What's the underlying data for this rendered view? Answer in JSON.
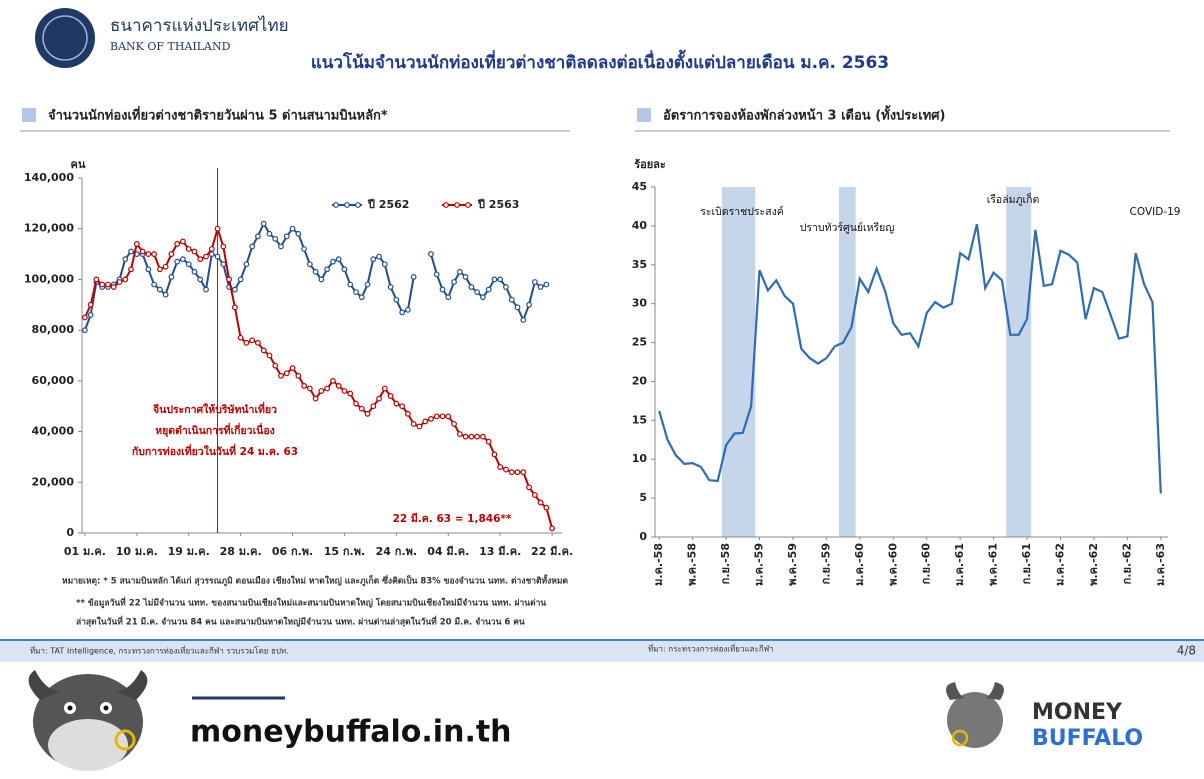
{
  "header": {
    "org_thai": "ธนาคารแห่งประเทศไทย",
    "org_english": "BANK OF THAILAND",
    "title": "แนวโน้มจำนวนนักท่องเที่ยวต่างชาติลดลงต่อเนื่องตั้งแต่ปลายเดือน ม.ค. 2563"
  },
  "chart_data": [
    {
      "type": "line",
      "title": "จำนวนนักท่องเที่ยวต่างชาติรายวันผ่าน 5 ด่านสนามบินหลัก*",
      "ylabel": "คน",
      "categories": [
        "01 ม.ค.",
        null,
        null,
        null,
        null,
        null,
        null,
        null,
        null,
        "10 ม.ค.",
        null,
        null,
        null,
        null,
        null,
        null,
        null,
        null,
        "19 ม.ค.",
        null,
        null,
        null,
        null,
        null,
        null,
        null,
        null,
        "28 ม.ค.",
        null,
        null,
        null,
        null,
        null,
        null,
        null,
        null,
        "06 ก.พ.",
        null,
        null,
        null,
        null,
        null,
        null,
        null,
        null,
        "15 ก.พ.",
        null,
        null,
        null,
        null,
        null,
        null,
        null,
        null,
        "24 ก.พ.",
        null,
        null,
        null,
        null,
        null,
        null,
        null,
        null,
        "04 มี.ค.",
        null,
        null,
        null,
        null,
        null,
        null,
        null,
        null,
        "13 มี.ค.",
        null,
        null,
        null,
        null,
        null,
        null,
        null,
        null,
        "22 มี.ค."
      ],
      "series": [
        {
          "name": "ปี 2562",
          "color": "#1f4e8c",
          "values": [
            80000,
            86000,
            99000,
            97000,
            97000,
            98000,
            100000,
            108000,
            111000,
            110000,
            110000,
            104000,
            98000,
            96000,
            94000,
            101000,
            107000,
            108000,
            106000,
            103000,
            100000,
            96000,
            110000,
            109000,
            106000,
            97000,
            96000,
            100000,
            106000,
            113000,
            117000,
            122000,
            118000,
            116000,
            113000,
            117000,
            120000,
            118000,
            112000,
            106000,
            103000,
            100000,
            104000,
            107000,
            108000,
            104000,
            98000,
            95000,
            93000,
            98000,
            108000,
            109000,
            106000,
            97000,
            92000,
            87000,
            88000,
            101000,
            null,
            null,
            110000,
            102000,
            96000,
            93000,
            99000,
            103000,
            101000,
            97000,
            95000,
            93000,
            96000,
            100000,
            100000,
            97000,
            92000,
            89000,
            84000,
            90000,
            99000,
            97000,
            98000,
            null
          ]
        },
        {
          "name": "ปี 2563",
          "color": "#c00000",
          "values": [
            85000,
            90000,
            100000,
            98000,
            98000,
            97000,
            99000,
            100000,
            104000,
            114000,
            111000,
            110000,
            110000,
            104000,
            105000,
            110000,
            114000,
            115000,
            112000,
            111000,
            108000,
            109000,
            112000,
            120000,
            113000,
            100000,
            89000,
            77000,
            75000,
            76000,
            75000,
            72000,
            70000,
            66000,
            62000,
            63000,
            65000,
            62000,
            58000,
            57000,
            53000,
            56000,
            57000,
            60000,
            58000,
            56000,
            55000,
            51000,
            49000,
            47000,
            50000,
            53000,
            57000,
            54000,
            51000,
            50000,
            47000,
            43000,
            42000,
            44000,
            45000,
            46000,
            46000,
            46000,
            43000,
            39000,
            38000,
            38000,
            38000,
            38000,
            36000,
            31000,
            26000,
            25000,
            24000,
            24000,
            24000,
            18000,
            15000,
            12000,
            10000,
            1846
          ]
        }
      ],
      "ylim": [
        0,
        140000
      ],
      "yticks": [
        0,
        {
          "value": 20000,
          "label": "20,000"
        },
        {
          "value": 40000,
          "label": "40,000"
        },
        {
          "value": 60000,
          "label": "60,000"
        },
        {
          "value": 80000,
          "label": "80,000"
        },
        {
          "value": 100000,
          "label": "100,000"
        },
        {
          "value": 120000,
          "label": "120,000"
        },
        {
          "value": 140000,
          "label": "140,000"
        }
      ],
      "markers": true,
      "legend": "top-right",
      "event_category": 23,
      "annotations": [
        "จีนประกาศให้บริษัทนำเที่ยว",
        "หยุดดำเนินการที่เกี่ยวเนื่อง",
        "กับการท่องเที่ยวในวันที่ 24 ม.ค. 63",
        "22 มี.ค. 63 = 1,846**"
      ],
      "notes": [
        "หมายเหตุ: * 5 สนามบินหลัก ได้แก่ สุวรรณภูมิ ดอนเมือง เชียงใหม่ หาดใหญ่ และภูเก็ต ซึ่งคิดเป็น 83% ของจำนวน นทท. ต่างชาติทั้งหมด",
        "** ข้อมูลวันที่ 22 ไม่มีจำนวน นทท. ของสนามบินเชียงใหม่และสนามบินหาดใหญ่ โดยสนามบินเชียงใหม่มีจำนวน นทท. ผ่านด่าน",
        "ล่าสุดในวันที่ 21 มี.ค. จำนวน 84 คน และสนามบินหาดใหญ่มีจำนวน นทท. ผ่านด่านล่าสุดในวันที่ 20 มี.ค. จำนวน 6 คน"
      ],
      "source": "ที่มา: TAT Intelligence, กระทรวงการท่องเที่ยวและกีฬา รวบรวมโดย ธปท."
    },
    {
      "type": "line",
      "title": "อัตราการจองห้องพักล่วงหน้า 3 เดือน (ทั้งประเทศ)",
      "ylabel": "ร้อยละ",
      "categories": [
        "ม.ค.-58",
        null,
        null,
        null,
        "พ.ค.-58",
        null,
        null,
        null,
        "ก.ย.-58",
        null,
        null,
        null,
        "ม.ค.-59",
        null,
        null,
        null,
        "พ.ค.-59",
        null,
        null,
        null,
        "ก.ย.-59",
        null,
        null,
        null,
        "ม.ค.-60",
        null,
        null,
        null,
        "พ.ค.-60",
        null,
        null,
        null,
        "ก.ย.-60",
        null,
        null,
        null,
        "ม.ค.-61",
        null,
        null,
        null,
        "พ.ค.-61",
        null,
        null,
        null,
        "ก.ย.-61",
        null,
        null,
        null,
        "ม.ค.-62",
        null,
        null,
        null,
        "พ.ค.-62",
        null,
        null,
        null,
        "ก.ย.-62",
        null,
        null,
        null,
        "ม.ค.-63"
      ],
      "series": [
        {
          "color": "#2e6db4",
          "values": [
            16.2,
            12.5,
            10.5,
            9.4,
            9.5,
            9.0,
            7.3,
            7.2,
            11.8,
            13.3,
            13.4,
            16.8,
            34.3,
            31.7,
            33.0,
            31.0,
            30.0,
            24.2,
            23.0,
            22.3,
            23.0,
            24.5,
            25.0,
            27.0,
            33.2,
            31.5,
            34.5,
            31.7,
            27.5,
            26.0,
            26.2,
            24.5,
            28.8,
            30.2,
            29.5,
            30.0,
            36.5,
            35.7,
            40.2,
            32.0,
            34.0,
            33.0,
            26.0,
            26.0,
            28.0,
            39.5,
            32.3,
            32.5,
            36.8,
            36.3,
            35.3,
            28.0,
            32.0,
            31.5,
            28.5,
            25.5,
            25.8,
            36.5,
            32.5,
            30.2,
            5.6
          ]
        }
      ],
      "ylim": [
        0,
        45
      ],
      "yticks": [
        0,
        5,
        10,
        15,
        20,
        25,
        30,
        35,
        40,
        45
      ],
      "markers": false,
      "highlight_color": "#c5d5ea",
      "highlights": [
        {
          "from": 8,
          "to": 11
        },
        {
          "from": 22,
          "to": 23
        },
        {
          "from": 42,
          "to": 44
        }
      ],
      "annotations": [
        "ระเบิดราชประสงค์",
        "ปราบทัวร์ศูนย์เหรียญ",
        "เรือล่มภูเก็ต",
        "COVID-19"
      ],
      "source": "ที่มา: กระทรวงการท่องเที่ยวและกีฬา"
    }
  ],
  "footer": {
    "page": "4/8"
  },
  "branding": {
    "site": "moneybuffalo.in.th",
    "logo_top": "MONEY",
    "logo_bottom": "BUFFALO"
  }
}
